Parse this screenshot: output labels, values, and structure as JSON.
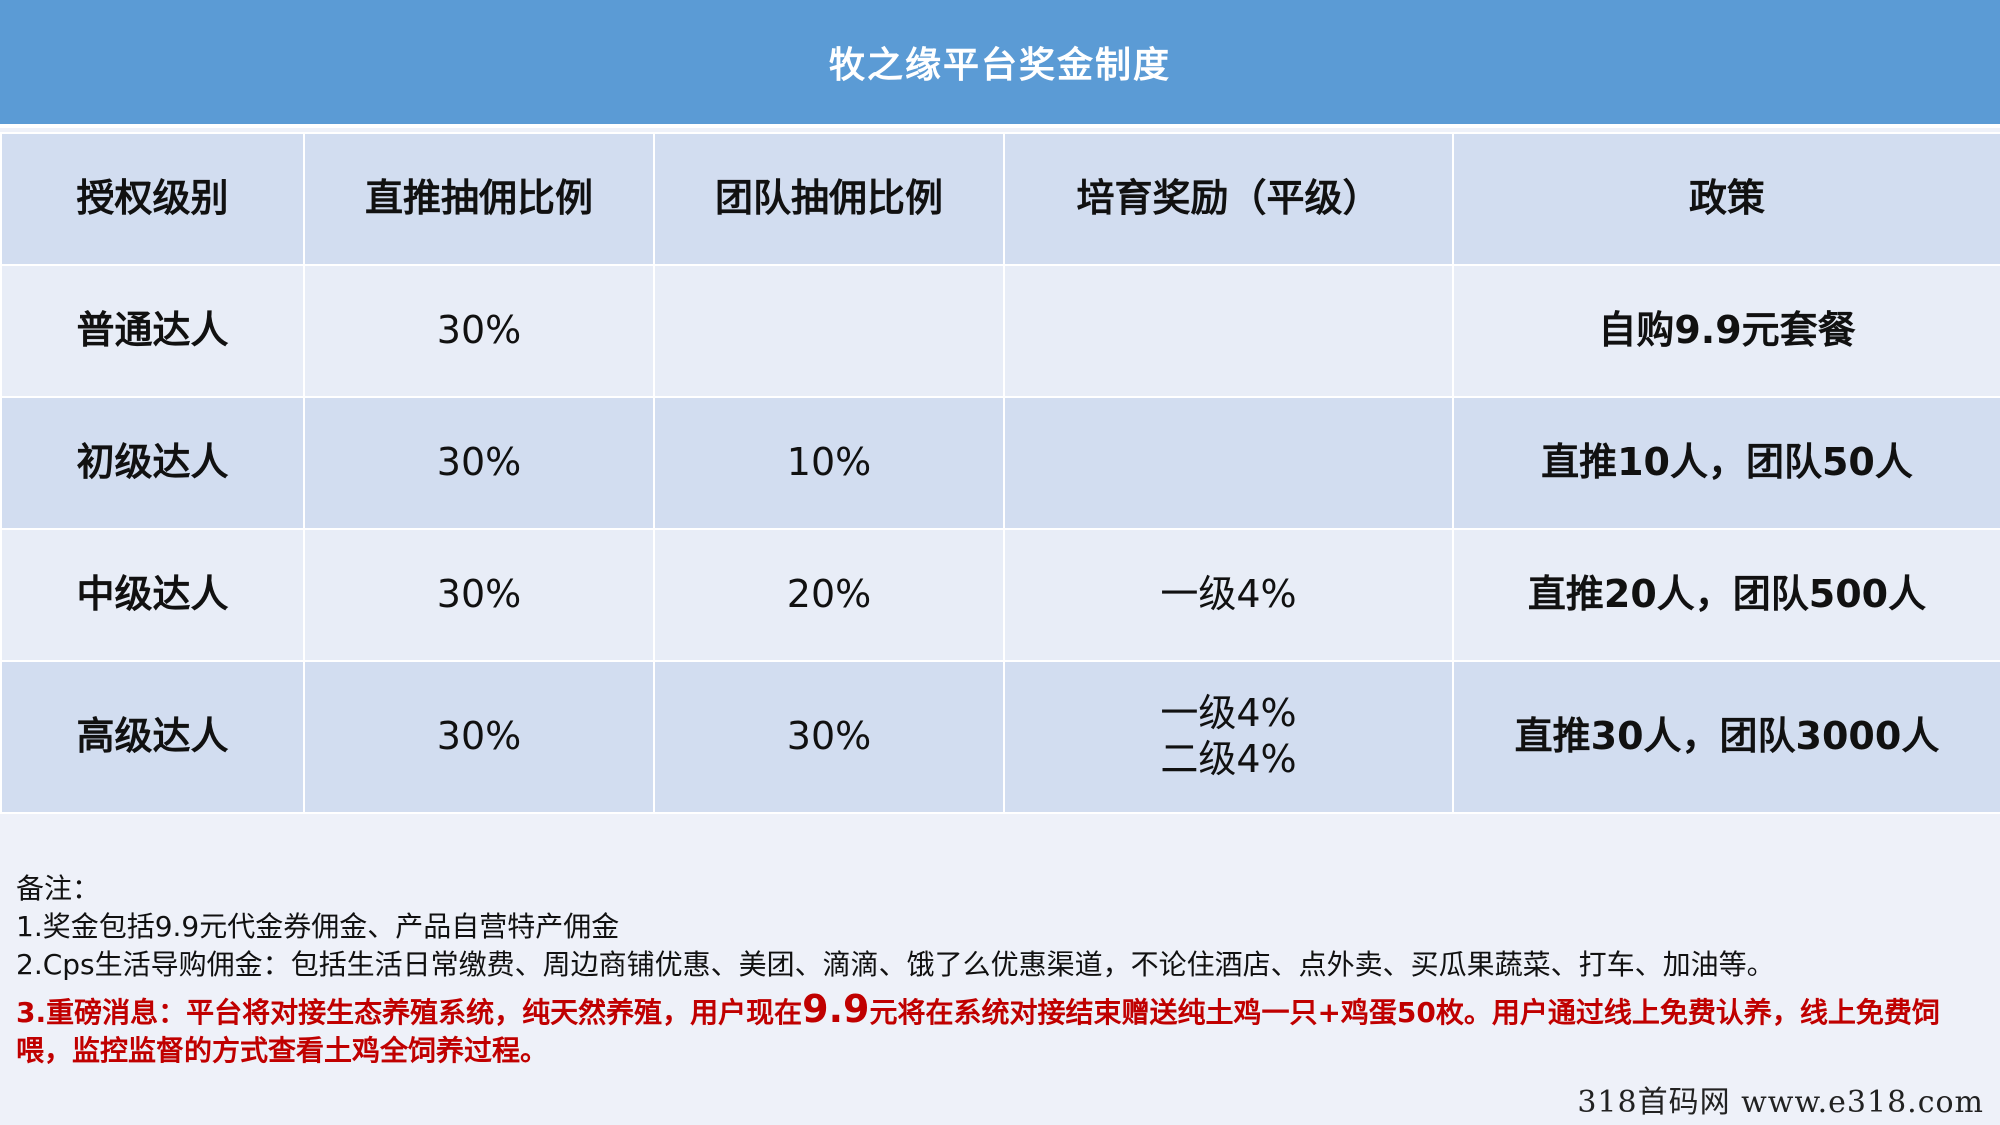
{
  "title": "牧之缘平台奖金制度",
  "table": {
    "headers": [
      "授权级别",
      "直推抽佣比例",
      "团队抽佣比例",
      "培育奖励（平级）",
      "政策"
    ],
    "rows": [
      {
        "level": "普通达人",
        "direct": "30%",
        "team": "",
        "nurture": [
          ""
        ],
        "policy": "自购9.9元套餐"
      },
      {
        "level": "初级达人",
        "direct": "30%",
        "team": "10%",
        "nurture": [
          ""
        ],
        "policy": "直推10人，团队50人"
      },
      {
        "level": "中级达人",
        "direct": "30%",
        "team": "20%",
        "nurture": [
          "一级4%"
        ],
        "policy": "直推20人，团队500人"
      },
      {
        "level": "高级达人",
        "direct": "30%",
        "team": "30%",
        "nurture": [
          "一级4%",
          "二级4%"
        ],
        "policy": "直推30人，团队3000人"
      }
    ]
  },
  "notes": {
    "heading": "备注：",
    "line1": "1.奖金包括9.9元代金券佣金、产品自营特产佣金",
    "line2": "2.Cps生活导购佣金：包括生活日常缴费、周边商铺优惠、美团、滴滴、饿了么优惠渠道，不论住酒店、点外卖、买瓜果蔬菜、打车、加油等。",
    "red_before": "3.重磅消息：平台将对接生态养殖系统，纯天然养殖，用户现在",
    "red_big": "9.9",
    "red_after": "元将在系统对接结束赠送纯土鸡一只+鸡蛋50枚。用户通过线上免费认养，线上免费饲喂，监控监督的方式查看土鸡全饲养过程。"
  },
  "watermark": "318首码网  www.e318.com",
  "colors": {
    "title_bar": "#5b9bd5",
    "header_row": "#d2ddf0",
    "row_light": "#e8edf7",
    "row_dark": "#d2ddf0",
    "highlight_red": "#c00000"
  }
}
